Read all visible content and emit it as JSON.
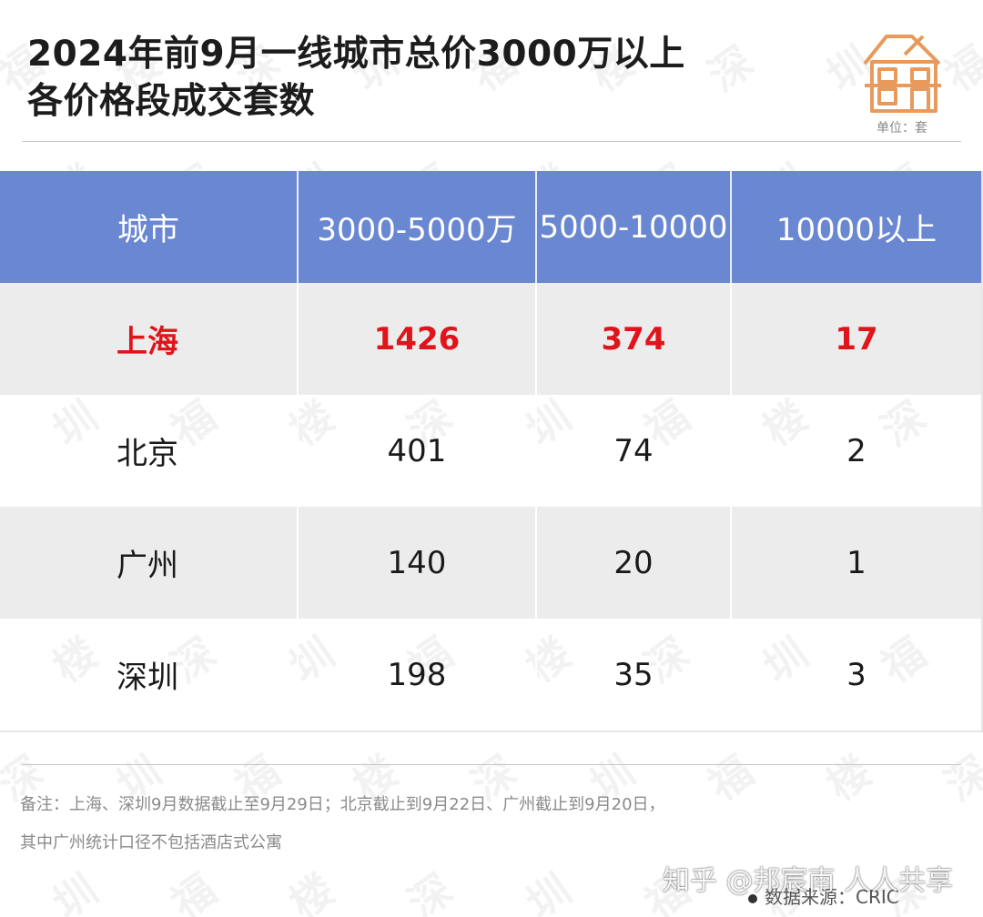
{
  "chart_data": {
    "type": "table",
    "title_line1": "2024年前9月一线城市总价3000万以上",
    "title_line2": "各价格段成交套数",
    "unit": "单位：套",
    "columns": [
      "城市",
      "3000-5000万",
      "5000-10000",
      "10000以上"
    ],
    "rows": [
      {
        "city": "上海",
        "v1": "1426",
        "v2": "374",
        "v3": "17",
        "highlight": true
      },
      {
        "city": "北京",
        "v1": "401",
        "v2": "74",
        "v3": "2",
        "highlight": false
      },
      {
        "city": "广州",
        "v1": "140",
        "v2": "20",
        "v3": "1",
        "highlight": false
      },
      {
        "city": "深圳",
        "v1": "198",
        "v2": "35",
        "v3": "3",
        "highlight": false
      }
    ],
    "header_color": "#6a87d1",
    "highlight_color": "#e0141b"
  },
  "notes": {
    "line1": "备注：上海、深圳9月数据截止至9月29日；北京截止到9月22日、广州截止到9月20日，",
    "line2": "其中广州统计口径不包括酒店式公寓"
  },
  "source": "数据来源：CRIC",
  "watermark": "知乎 @邦宸南 人人共享",
  "icons": {
    "logo": "house-icon"
  }
}
